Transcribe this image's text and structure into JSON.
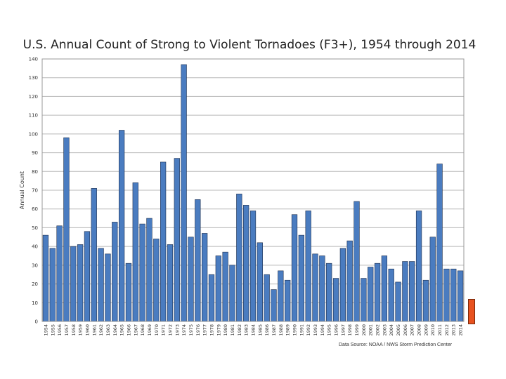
{
  "chart_data": {
    "type": "bar",
    "title": "U.S. Annual Count of Strong to Violent Tornadoes (F3+), 1954 through 2014",
    "ylabel": "Annual Count",
    "xlabel": "",
    "ylim": [
      0,
      140
    ],
    "yticks": [
      0,
      10,
      20,
      30,
      40,
      50,
      60,
      70,
      80,
      90,
      100,
      110,
      120,
      130,
      140
    ],
    "grid": true,
    "bar_color": "#4a7cc0",
    "categories": [
      "1954",
      "1955",
      "1956",
      "1957",
      "1958",
      "1959",
      "1960",
      "1961",
      "1962",
      "1963",
      "1964",
      "1965",
      "1966",
      "1967",
      "1968",
      "1969",
      "1970",
      "1971",
      "1972",
      "1973",
      "1974",
      "1975",
      "1976",
      "1977",
      "1978",
      "1979",
      "1980",
      "1981",
      "1982",
      "1983",
      "1984",
      "1985",
      "1986",
      "1987",
      "1988",
      "1989",
      "1990",
      "1991",
      "1992",
      "1993",
      "1994",
      "1995",
      "1996",
      "1997",
      "1998",
      "1999",
      "2000",
      "2001",
      "2002",
      "2003",
      "2004",
      "2005",
      "2006",
      "2007",
      "2008",
      "2009",
      "2010",
      "2011",
      "2012",
      "2013",
      "2014"
    ],
    "values": [
      46,
      39,
      51,
      98,
      40,
      41,
      48,
      71,
      39,
      36,
      53,
      102,
      31,
      74,
      52,
      55,
      44,
      85,
      41,
      87,
      137,
      45,
      65,
      47,
      25,
      35,
      37,
      30,
      68,
      62,
      59,
      42,
      25,
      17,
      27,
      22,
      57,
      46,
      59,
      36,
      35,
      31,
      23,
      39,
      43,
      64,
      23,
      29,
      31,
      35,
      28,
      21,
      32,
      32,
      59,
      22,
      45,
      84,
      28,
      28,
      27
    ],
    "source": "Data Source: NOAA / NWS Storm Prediction Center"
  },
  "accent_marker_color": "#e8521f"
}
